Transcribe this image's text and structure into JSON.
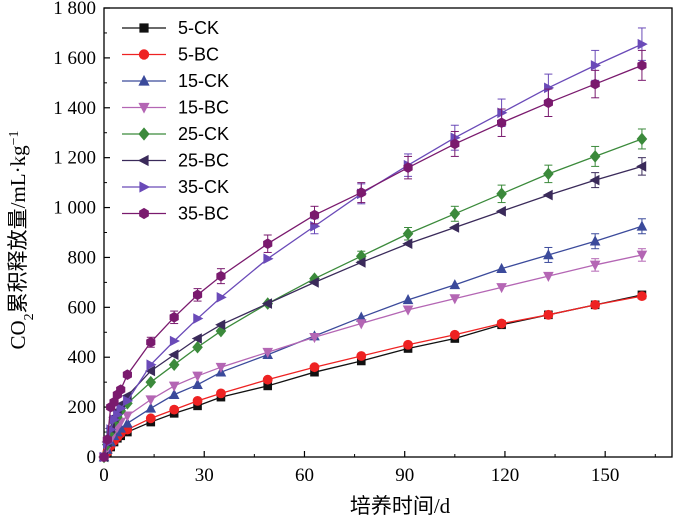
{
  "chart_data": {
    "type": "line",
    "xlabel": "培养时间/d",
    "ylabel": "CO₂累积释放量/mL·kg⁻¹",
    "ylabel_parts": {
      "pre": "CO",
      "sub": "2",
      "mid": "累积释放量/mL·kg",
      "sup": "−1"
    },
    "xlim": [
      0,
      170
    ],
    "ylim": [
      0,
      1800
    ],
    "xticks": [
      0,
      30,
      60,
      90,
      120,
      150
    ],
    "xtick_labels": [
      "0",
      "30",
      "60",
      "90",
      "120",
      "150"
    ],
    "yticks": [
      0,
      200,
      400,
      600,
      800,
      1000,
      1200,
      1400,
      1600,
      1800
    ],
    "ytick_labels": [
      "0",
      "200",
      "400",
      "600",
      "800",
      "1 000",
      "1 200",
      "1 400",
      "1 600",
      "1 800"
    ],
    "x": [
      0,
      1,
      2,
      3,
      4,
      5,
      7,
      14,
      21,
      28,
      35,
      49,
      63,
      77,
      91,
      105,
      119,
      133,
      147,
      161
    ],
    "legend_position": "top-left",
    "series": [
      {
        "name": "5-CK",
        "marker": "square",
        "color": "#111111",
        "values": [
          0,
          15,
          40,
          60,
          75,
          85,
          100,
          140,
          175,
          205,
          240,
          285,
          340,
          385,
          435,
          475,
          530,
          570,
          610,
          650
        ],
        "errors": [
          0,
          0,
          0,
          0,
          0,
          0,
          0,
          0,
          0,
          0,
          0,
          0,
          0,
          0,
          0,
          0,
          0,
          0,
          0,
          0
        ]
      },
      {
        "name": "5-BC",
        "marker": "circle",
        "color": "#ee2222",
        "values": [
          0,
          20,
          45,
          65,
          80,
          95,
          110,
          155,
          190,
          225,
          255,
          310,
          360,
          405,
          450,
          490,
          535,
          570,
          610,
          645
        ],
        "errors": [
          0,
          0,
          0,
          0,
          0,
          0,
          0,
          0,
          0,
          0,
          0,
          0,
          0,
          0,
          0,
          0,
          0,
          0,
          0,
          0
        ]
      },
      {
        "name": "15-CK",
        "marker": "triangle-up",
        "color": "#3b4a9b",
        "values": [
          0,
          30,
          60,
          85,
          100,
          115,
          135,
          195,
          250,
          290,
          340,
          410,
          485,
          560,
          630,
          690,
          755,
          810,
          865,
          925
        ],
        "errors": [
          0,
          0,
          0,
          0,
          0,
          0,
          0,
          0,
          0,
          0,
          0,
          0,
          0,
          0,
          0,
          0,
          0,
          30,
          30,
          30
        ]
      },
      {
        "name": "15-BC",
        "marker": "triangle-down",
        "color": "#b466b4",
        "values": [
          0,
          35,
          70,
          100,
          120,
          140,
          165,
          230,
          285,
          325,
          360,
          420,
          480,
          535,
          590,
          635,
          680,
          725,
          770,
          810
        ],
        "errors": [
          0,
          0,
          0,
          0,
          0,
          0,
          0,
          0,
          0,
          0,
          0,
          0,
          0,
          0,
          0,
          0,
          0,
          0,
          25,
          25
        ]
      },
      {
        "name": "25-CK",
        "marker": "diamond",
        "color": "#3b8a3b",
        "values": [
          0,
          50,
          100,
          140,
          160,
          185,
          215,
          300,
          370,
          440,
          505,
          615,
          715,
          805,
          895,
          975,
          1055,
          1135,
          1205,
          1275
        ],
        "errors": [
          0,
          0,
          0,
          0,
          0,
          0,
          0,
          0,
          0,
          0,
          0,
          0,
          0,
          20,
          25,
          30,
          35,
          35,
          40,
          40
        ]
      },
      {
        "name": "25-BC",
        "marker": "triangle-left",
        "color": "#3a2a5a",
        "values": [
          0,
          60,
          115,
          160,
          185,
          210,
          245,
          345,
          410,
          475,
          530,
          615,
          700,
          780,
          855,
          920,
          985,
          1050,
          1110,
          1165
        ],
        "errors": [
          0,
          0,
          0,
          0,
          0,
          0,
          0,
          0,
          0,
          0,
          0,
          0,
          0,
          0,
          0,
          0,
          0,
          0,
          30,
          35
        ]
      },
      {
        "name": "35-CK",
        "marker": "triangle-right",
        "color": "#6a4ab8",
        "values": [
          0,
          55,
          110,
          150,
          170,
          195,
          225,
          370,
          465,
          555,
          640,
          795,
          925,
          1055,
          1170,
          1280,
          1380,
          1480,
          1570,
          1655
        ],
        "errors": [
          0,
          0,
          0,
          0,
          0,
          0,
          0,
          0,
          0,
          0,
          0,
          0,
          30,
          40,
          45,
          50,
          55,
          55,
          60,
          65
        ]
      },
      {
        "name": "35-BC",
        "marker": "hexagon",
        "color": "#7a1a6e",
        "values": [
          0,
          70,
          200,
          220,
          250,
          270,
          330,
          460,
          560,
          650,
          725,
          855,
          970,
          1060,
          1160,
          1255,
          1340,
          1420,
          1495,
          1570
        ],
        "errors": [
          0,
          0,
          0,
          0,
          0,
          0,
          0,
          20,
          25,
          25,
          30,
          35,
          35,
          40,
          45,
          50,
          55,
          55,
          55,
          60
        ]
      }
    ]
  }
}
